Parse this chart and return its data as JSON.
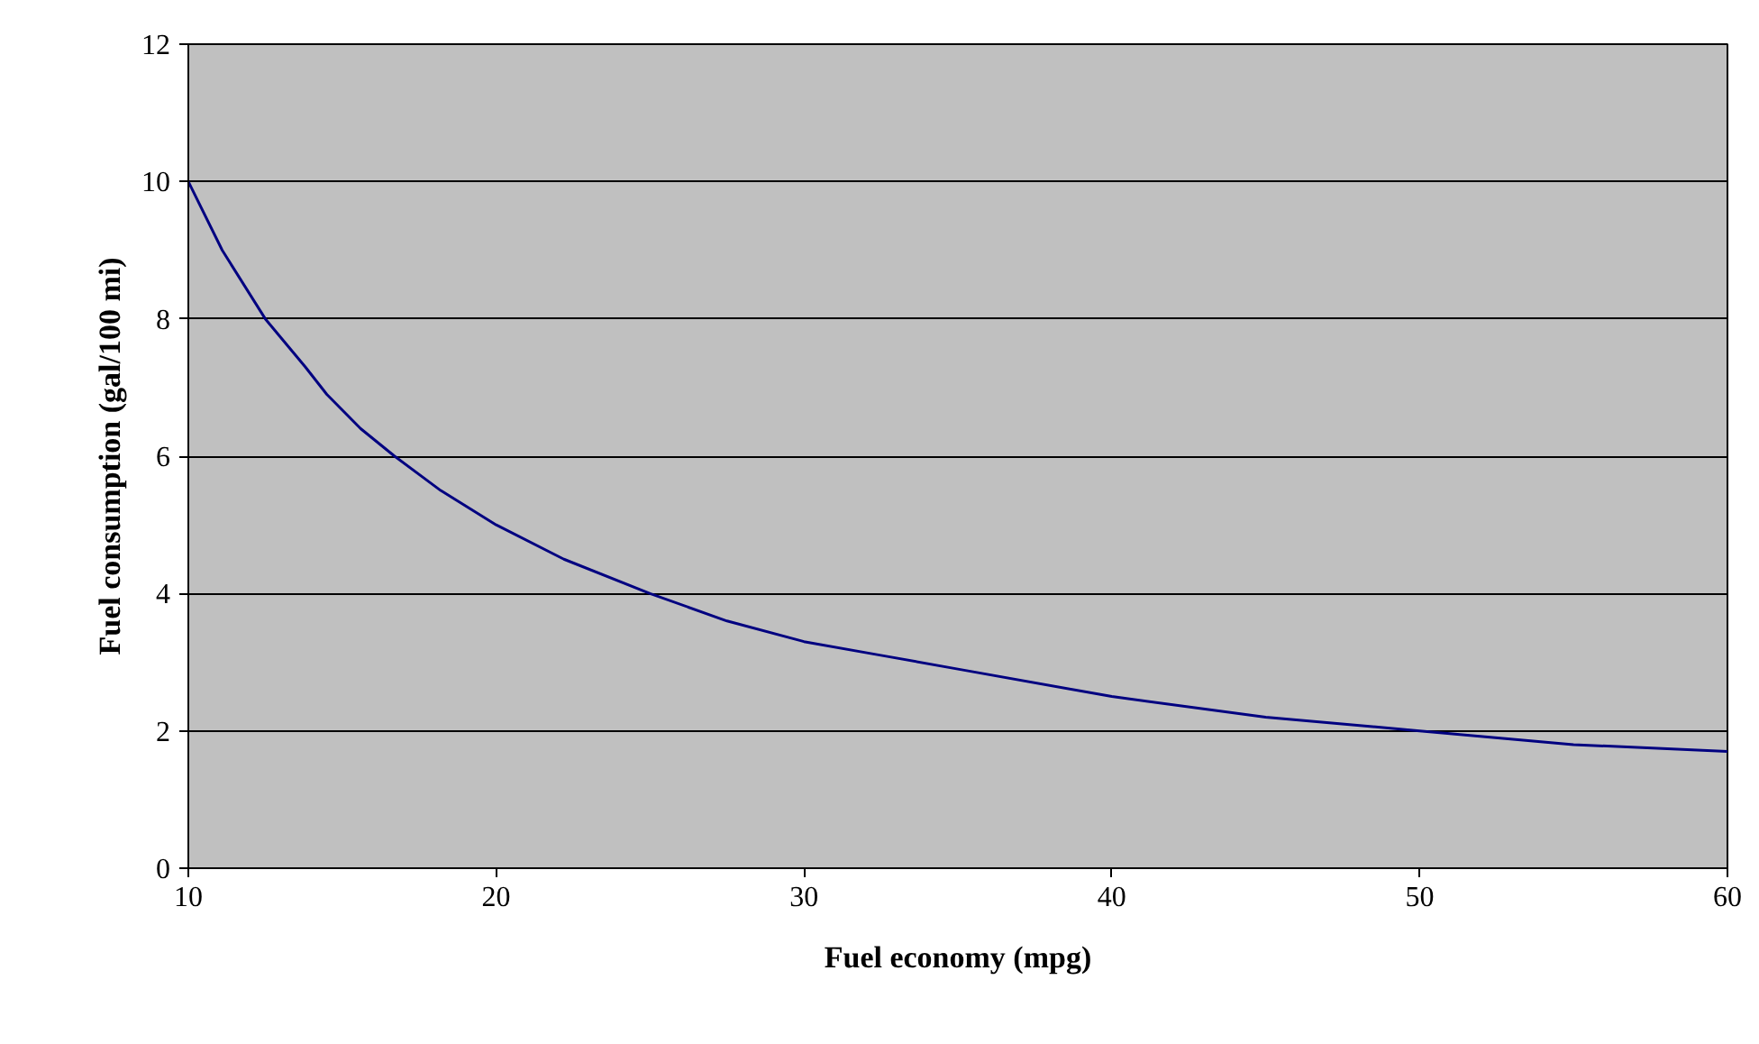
{
  "chart_data": {
    "type": "line",
    "xlabel": "Fuel economy (mpg)",
    "ylabel": "Fuel consumption (gal/100 mi)",
    "x": [
      10,
      11.1,
      12.5,
      13.8,
      14.5,
      15.6,
      16.7,
      18.2,
      20,
      22.2,
      25,
      27.5,
      30,
      32.5,
      35,
      40,
      45,
      50,
      55,
      60
    ],
    "series": [
      {
        "color": "#000080",
        "values": [
          10,
          9.0,
          8.0,
          7.3,
          6.9,
          6.4,
          6.0,
          5.5,
          5.0,
          4.5,
          4.0,
          3.6,
          3.3,
          3.1,
          2.9,
          2.5,
          2.2,
          2.0,
          1.8,
          1.7
        ]
      }
    ],
    "xlim": [
      10,
      60
    ],
    "xticks": [
      10,
      20,
      30,
      40,
      50,
      60
    ],
    "ylim": [
      0,
      12
    ],
    "yticks": [
      0,
      2,
      4,
      6,
      8,
      10,
      12
    ],
    "grid": "y",
    "marker": "none",
    "line_style": "solid"
  }
}
